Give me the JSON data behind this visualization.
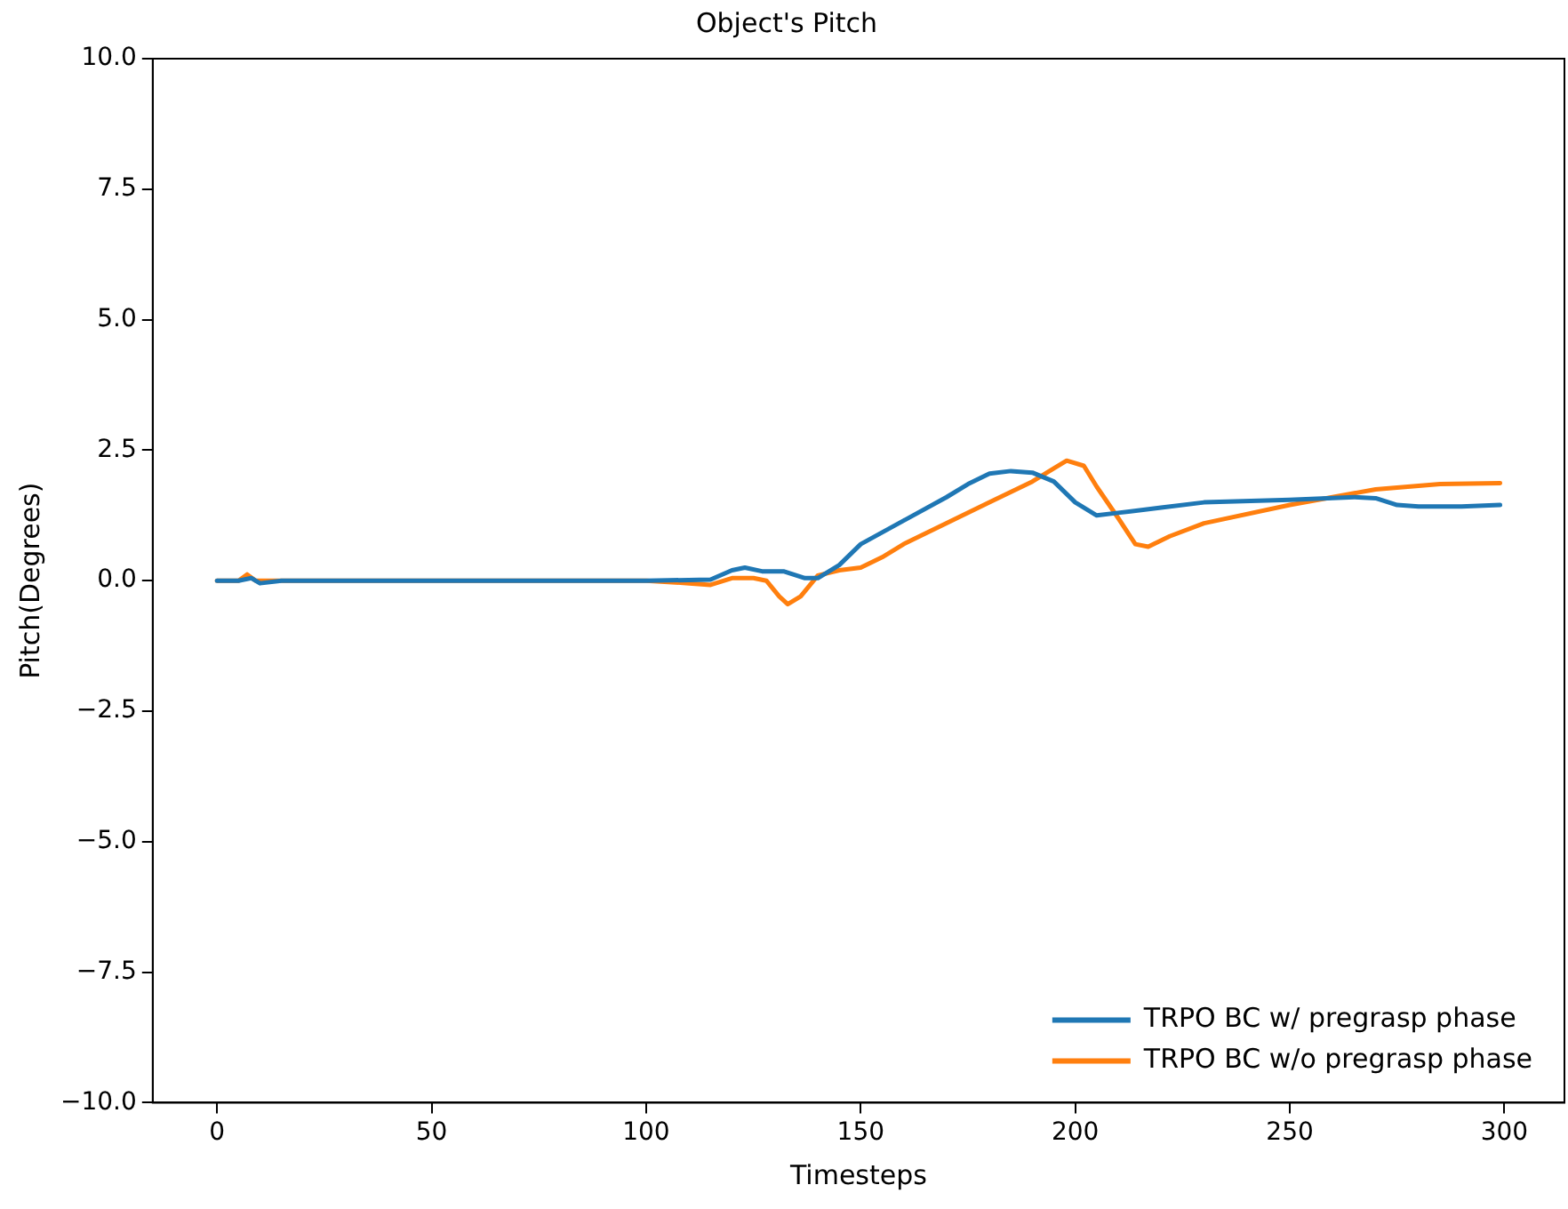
{
  "chart_data": {
    "type": "line",
    "title": "Object's Pitch",
    "xlabel": "Timesteps",
    "ylabel": "Pitch(Degrees)",
    "xlim": [
      -15,
      314
    ],
    "xticks": [
      0,
      50,
      100,
      150,
      200,
      250,
      300
    ],
    "ylim": [
      -10,
      10
    ],
    "yticks": [
      {
        "value": -10,
        "label": "−10.0"
      },
      {
        "value": -7.5,
        "label": "−7.5"
      },
      {
        "value": -5,
        "label": "−5.0"
      },
      {
        "value": -2.5,
        "label": "−2.5"
      },
      {
        "value": 0,
        "label": "0.0"
      },
      {
        "value": 2.5,
        "label": "2.5"
      },
      {
        "value": 5,
        "label": "5.0"
      },
      {
        "value": 7.5,
        "label": "7.5"
      },
      {
        "value": 10,
        "label": "10.0"
      }
    ],
    "grid": false,
    "legend": "bottom right",
    "marker": "none",
    "line_style": "solid",
    "series": [
      {
        "name": "TRPO BC w/ pregrasp phase",
        "color": "#1f77b4",
        "x": [
          0,
          5,
          8,
          10,
          15,
          100,
          115,
          120,
          123,
          127,
          132,
          137,
          140,
          145,
          150,
          160,
          170,
          175,
          180,
          185,
          190,
          195,
          200,
          205,
          210,
          220,
          230,
          250,
          265,
          270,
          275,
          280,
          290,
          299
        ],
        "values": [
          0,
          0,
          0.05,
          -0.05,
          0,
          0,
          0.02,
          0.2,
          0.25,
          0.18,
          0.18,
          0.05,
          0.05,
          0.3,
          0.7,
          1.15,
          1.6,
          1.85,
          2.05,
          2.1,
          2.07,
          1.9,
          1.5,
          1.25,
          1.3,
          1.4,
          1.5,
          1.55,
          1.6,
          1.58,
          1.45,
          1.42,
          1.42,
          1.45
        ]
      },
      {
        "name": "TRPO BC w/o pregrasp phase",
        "color": "#ff7f0e",
        "x": [
          0,
          5,
          7,
          9,
          100,
          110,
          115,
          120,
          125,
          128,
          131,
          133,
          136,
          140,
          145,
          150,
          155,
          160,
          170,
          180,
          190,
          195,
          198,
          202,
          205,
          210,
          214,
          217,
          222,
          230,
          250,
          270,
          285,
          299
        ],
        "values": [
          0,
          0,
          0.12,
          0,
          0,
          -0.05,
          -0.08,
          0.05,
          0.05,
          0,
          -0.3,
          -0.45,
          -0.3,
          0.1,
          0.2,
          0.25,
          0.45,
          0.7,
          1.1,
          1.5,
          1.9,
          2.15,
          2.3,
          2.2,
          1.8,
          1.2,
          0.7,
          0.65,
          0.85,
          1.1,
          1.45,
          1.75,
          1.85,
          1.87
        ]
      }
    ]
  }
}
